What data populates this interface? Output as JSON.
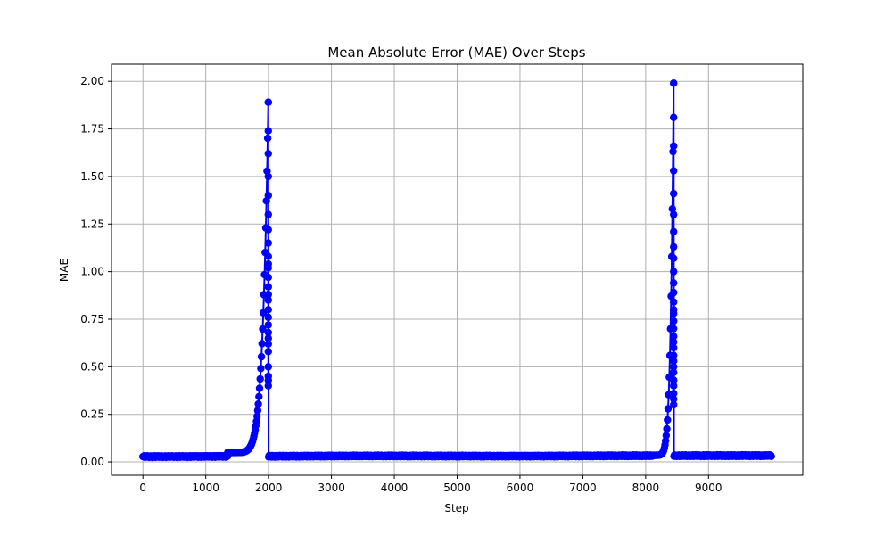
{
  "chart_data": {
    "type": "line",
    "title": "Mean Absolute Error (MAE) Over Steps",
    "xlabel": "Step",
    "ylabel": "MAE",
    "xlim": [
      -500,
      10500
    ],
    "ylim": [
      -0.07,
      2.09
    ],
    "xticks": [
      0,
      1000,
      2000,
      3000,
      4000,
      5000,
      6000,
      7000,
      8000,
      9000
    ],
    "yticks": [
      0.0,
      0.25,
      0.5,
      0.75,
      1.0,
      1.25,
      1.5,
      1.75,
      2.0
    ],
    "ytick_labels": [
      "0.00",
      "0.25",
      "0.50",
      "0.75",
      "1.00",
      "1.25",
      "1.50",
      "1.75",
      "2.00"
    ],
    "grid": true,
    "series": [
      {
        "name": "MAE",
        "color": "#0000ff",
        "marker": "circle",
        "segments": [
          {
            "from": 0,
            "to": 1350,
            "start": 0.028,
            "end": 0.03,
            "kind": "flat"
          },
          {
            "from": 1350,
            "to": 1995,
            "start": 0.05,
            "end": 1.89,
            "kind": "spike"
          },
          {
            "from": 2000,
            "to": 8100,
            "start": 0.03,
            "end": 0.032,
            "kind": "flat"
          },
          {
            "from": 8100,
            "to": 8445,
            "start": 0.035,
            "end": 1.99,
            "kind": "spike"
          },
          {
            "from": 8450,
            "to": 9999,
            "start": 0.032,
            "end": 0.034,
            "kind": "flat"
          }
        ],
        "spike_points": [
          {
            "x": 1995,
            "values": [
              0.4,
              0.43,
              0.45,
              0.5,
              0.58,
              0.62,
              0.65,
              0.68,
              0.72,
              0.76,
              0.8,
              0.85,
              0.88,
              0.92,
              0.97,
              1.02,
              1.04,
              1.08,
              1.15,
              1.22,
              1.3,
              1.4,
              1.5,
              1.62,
              1.74,
              1.89
            ]
          },
          {
            "x": 8445,
            "values": [
              0.3,
              0.33,
              0.36,
              0.4,
              0.43,
              0.47,
              0.5,
              0.53,
              0.56,
              0.6,
              0.63,
              0.66,
              0.7,
              0.74,
              0.78,
              0.8,
              0.84,
              0.89,
              0.94,
              1.0,
              1.07,
              1.13,
              1.21,
              1.3,
              1.41,
              1.53,
              1.66,
              1.81,
              1.99
            ]
          }
        ]
      }
    ]
  }
}
